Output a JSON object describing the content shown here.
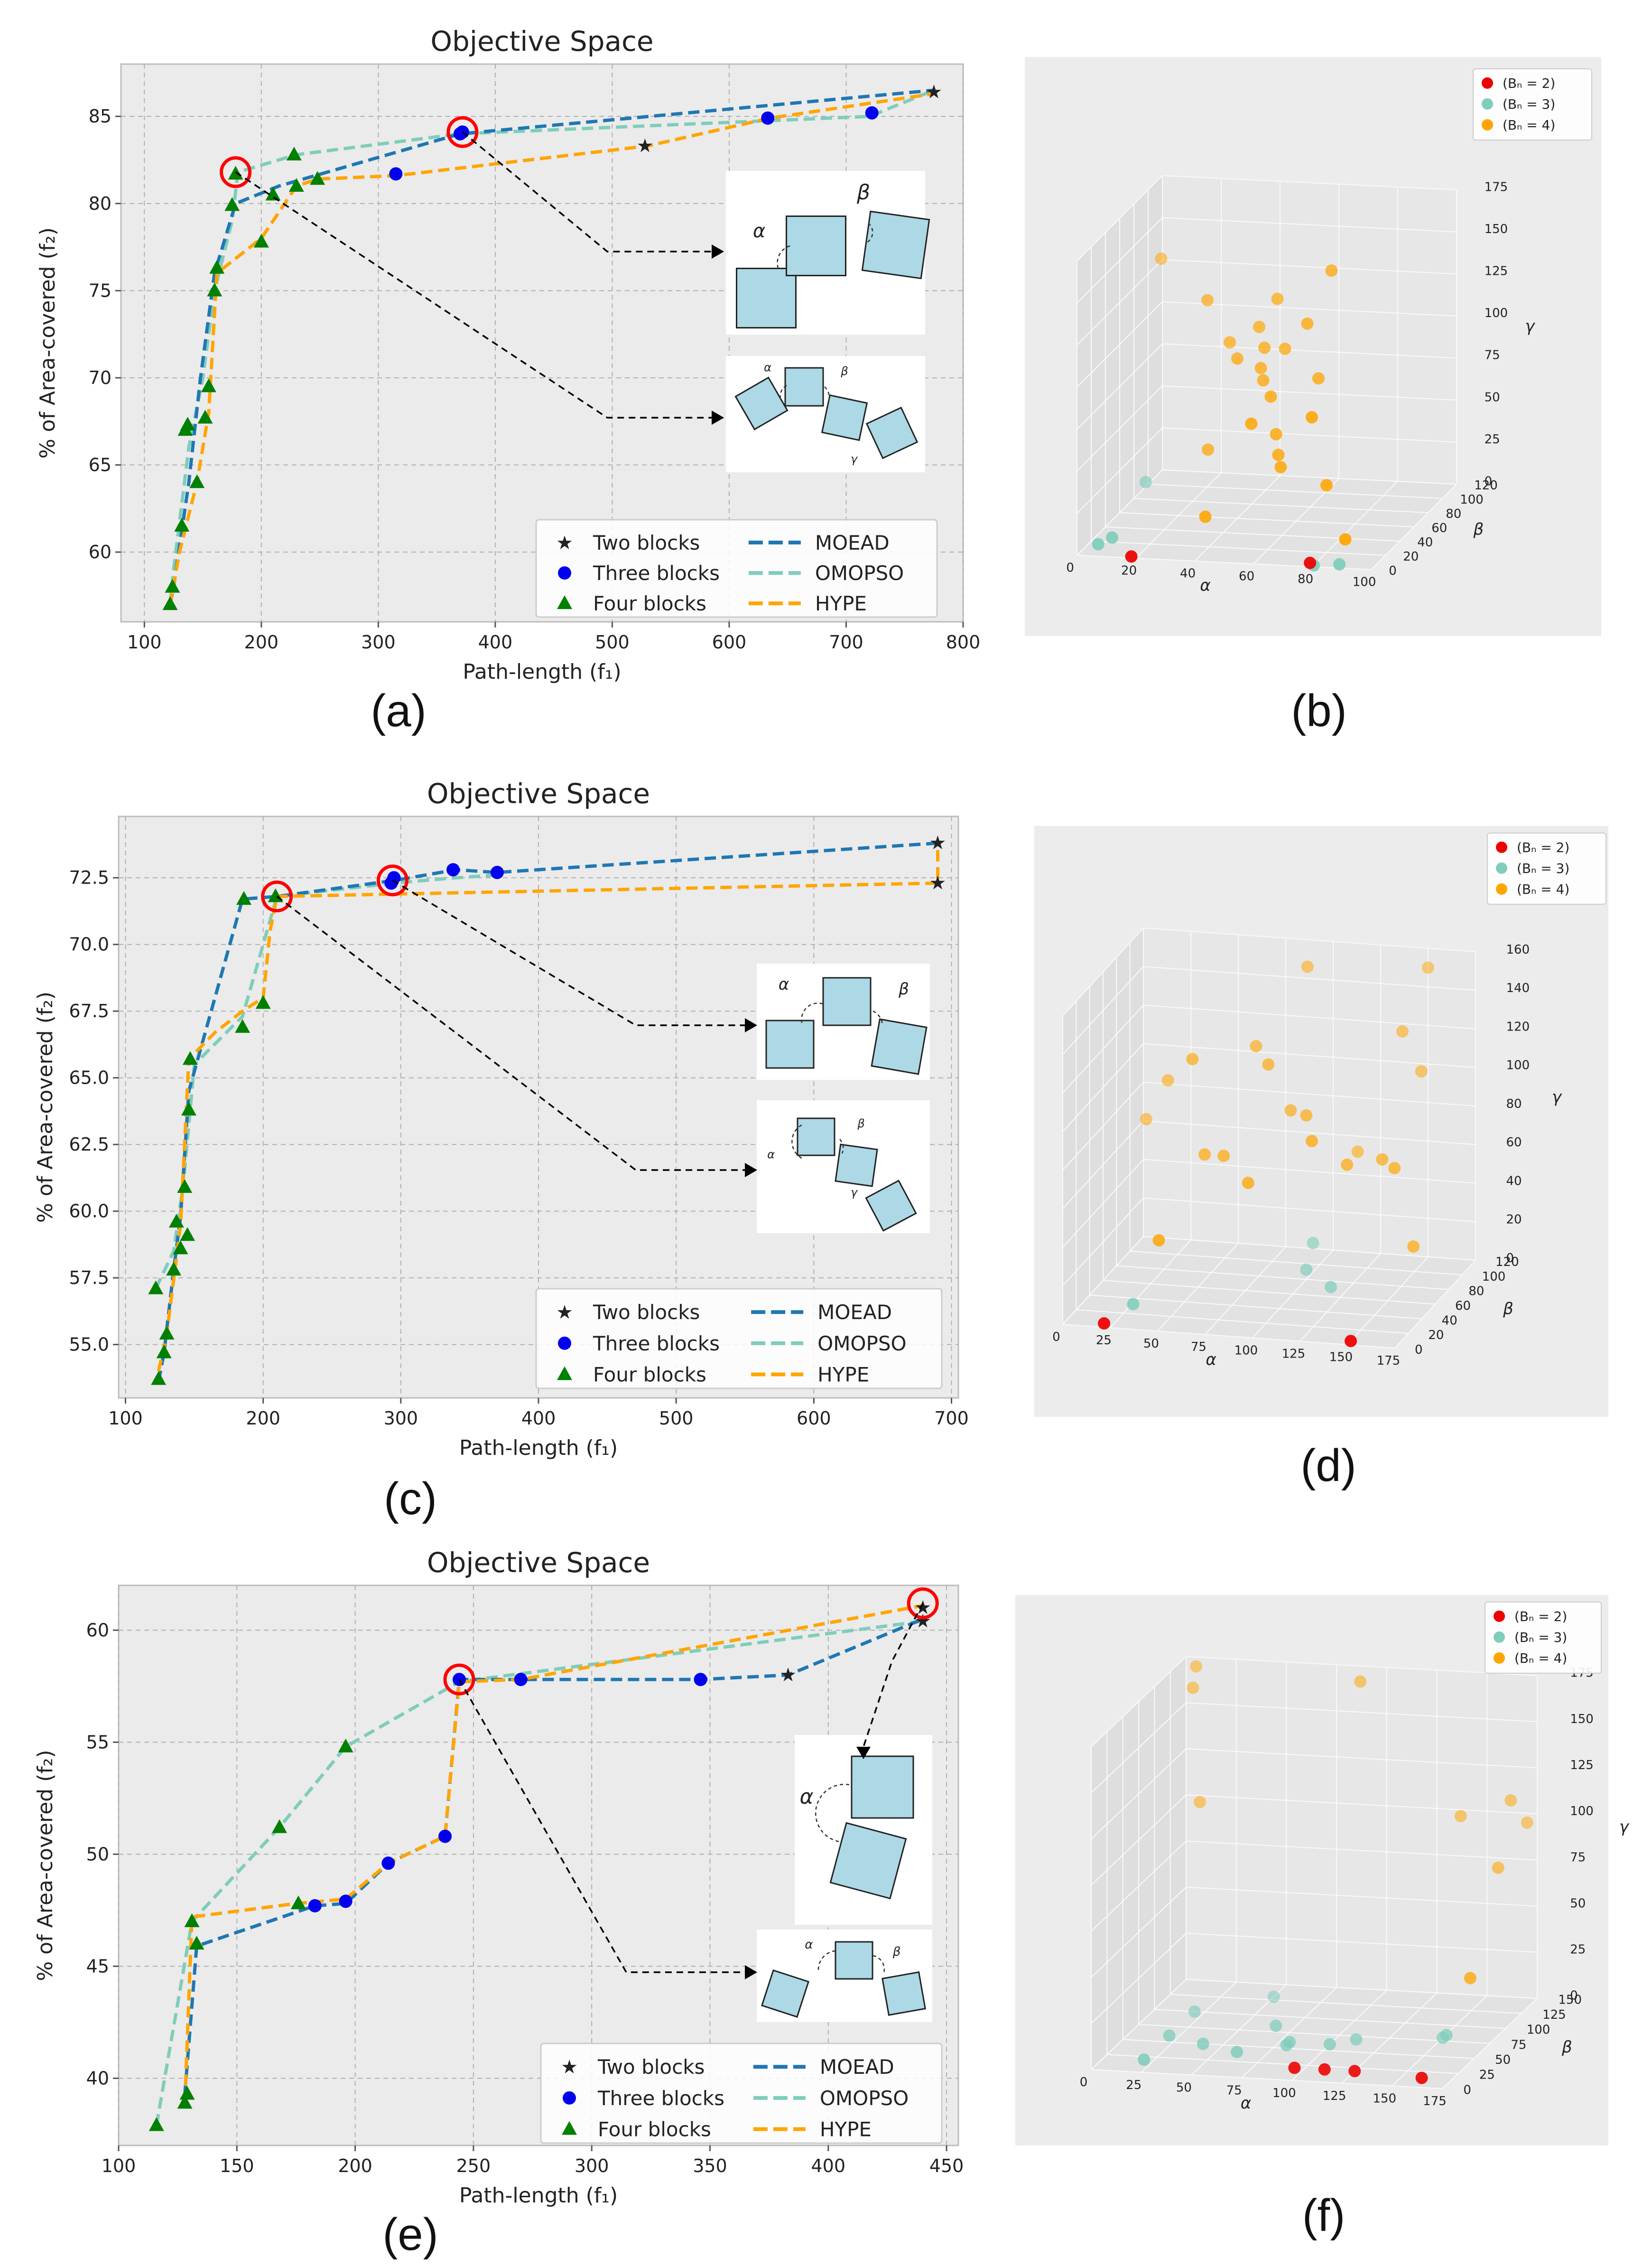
{
  "figure": {
    "panel_labels": [
      "(a)",
      "(b)",
      "(c)",
      "(d)",
      "(e)",
      "(f)"
    ]
  },
  "colors": {
    "moead": "#1f77b4",
    "omopso": "#7fcdbb",
    "hype": "#ffa500",
    "two": "#000000",
    "three": "#0000ee",
    "four": "#008000",
    "highlight": "#ff0000",
    "bn2": "#ee0000",
    "bn3": "#7fcdbb",
    "bn4": "#ffa500",
    "block": "#add8e6"
  },
  "chart_data": [
    {
      "id": "a",
      "type": "line",
      "title": "Objective Space",
      "xlabel": "Path-length (f₁)",
      "ylabel": "% of Area-covered (f₂)",
      "xlim": [
        80,
        800
      ],
      "ylim": [
        56,
        88
      ],
      "xticks": [
        100,
        200,
        300,
        400,
        500,
        600,
        700,
        800
      ],
      "yticks": [
        60,
        65,
        70,
        75,
        80,
        85
      ],
      "legend": [
        "Two blocks",
        "Three blocks",
        "Four blocks",
        "MOEAD",
        "OMOPSO",
        "HYPE"
      ],
      "series": [
        {
          "name": "MOEAD",
          "x": [
            122,
            125,
            138,
            148,
            160,
            178,
            215,
            370,
            775
          ],
          "y": [
            57,
            58,
            64,
            70,
            76,
            80,
            81,
            84,
            86.5
          ]
        },
        {
          "name": "OMOPSO",
          "x": [
            122,
            125,
            138,
            150,
            160,
            175,
            180,
            230,
            370,
            720,
            775
          ],
          "y": [
            57,
            59,
            66,
            70,
            75,
            79,
            81.8,
            82.8,
            84,
            85,
            86.5
          ]
        },
        {
          "name": "HYPE",
          "x": [
            122,
            130,
            145,
            155,
            162,
            200,
            230,
            248,
            315,
            530,
            635,
            775
          ],
          "y": [
            57,
            60,
            64,
            68,
            76,
            78,
            81,
            81.4,
            81.6,
            83.3,
            84.9,
            86.3
          ]
        }
      ],
      "two_blocks": {
        "x": [
          528,
          775
        ],
        "y": [
          83.3,
          86.4
        ]
      },
      "three_blocks": {
        "x": [
          315,
          370,
          372,
          633,
          722
        ],
        "y": [
          81.7,
          84.0,
          84.1,
          84.9,
          85.2
        ]
      },
      "four_blocks": {
        "x": [
          122,
          124,
          132,
          135,
          137,
          145,
          152,
          155,
          160,
          162,
          175,
          178,
          200,
          210,
          228,
          230,
          248
        ],
        "y": [
          57,
          58,
          61.5,
          67,
          67.3,
          64,
          67.7,
          69.5,
          75,
          76.3,
          79.9,
          81.7,
          77.8,
          80.5,
          82.8,
          81.0,
          81.4
        ]
      },
      "highlights": [
        {
          "x": 178,
          "y": 81.8
        },
        {
          "x": 372,
          "y": 84.1
        }
      ],
      "insets": [
        {
          "labels": [
            "α",
            "β"
          ]
        },
        {
          "labels": [
            "α",
            "β",
            "γ"
          ]
        }
      ]
    },
    {
      "id": "c",
      "type": "line",
      "title": "Objective Space",
      "xlabel": "Path-length (f₁)",
      "ylabel": "% of Area-covered (f₂)",
      "xlim": [
        95,
        705
      ],
      "ylim": [
        53,
        74.8
      ],
      "xticks": [
        100,
        200,
        300,
        400,
        500,
        600,
        700
      ],
      "yticks": [
        55.0,
        57.5,
        60.0,
        62.5,
        65.0,
        67.5,
        70.0,
        72.5
      ],
      "legend": [
        "Two blocks",
        "Three blocks",
        "Four blocks",
        "MOEAD",
        "OMOPSO",
        "HYPE"
      ],
      "series": [
        {
          "name": "MOEAD",
          "x": [
            124,
            128,
            135,
            140,
            146,
            185,
            210,
            295,
            340,
            370,
            690
          ],
          "y": [
            53.6,
            54.7,
            57.8,
            59.8,
            64.5,
            71.7,
            71.8,
            72.4,
            72.8,
            72.7,
            73.8
          ]
        },
        {
          "name": "OMOPSO",
          "x": [
            122,
            135,
            142,
            150,
            185,
            210,
            295,
            340,
            370
          ],
          "y": [
            57.1,
            58.5,
            61.0,
            65.5,
            67.3,
            71.8,
            72.3,
            72.5,
            72.6
          ]
        },
        {
          "name": "HYPE",
          "x": [
            124,
            130,
            140,
            146,
            165,
            185,
            200,
            205,
            210,
            690,
            690
          ],
          "y": [
            54.0,
            55.4,
            59.5,
            65.7,
            66.7,
            67.5,
            68.0,
            70.5,
            71.8,
            72.3,
            73.8
          ]
        }
      ],
      "two_blocks": {
        "x": [
          690,
          690
        ],
        "y": [
          72.3,
          73.8
        ]
      },
      "three_blocks": {
        "x": [
          293,
          295,
          338,
          370
        ],
        "y": [
          72.3,
          72.5,
          72.8,
          72.7
        ]
      },
      "four_blocks": {
        "x": [
          122,
          124,
          128,
          130,
          135,
          137,
          140,
          143,
          145,
          146,
          147,
          185,
          186,
          200,
          209
        ],
        "y": [
          57.1,
          53.7,
          54.7,
          55.4,
          57.8,
          59.6,
          58.6,
          60.9,
          59.1,
          63.8,
          65.7,
          66.9,
          71.7,
          67.8,
          71.8
        ]
      },
      "highlights": [
        {
          "x": 210,
          "y": 71.8
        },
        {
          "x": 294,
          "y": 72.4
        }
      ],
      "insets": [
        {
          "labels": [
            "α",
            "β"
          ]
        },
        {
          "labels": [
            "α",
            "β",
            "γ"
          ]
        }
      ]
    },
    {
      "id": "e",
      "type": "line",
      "title": "Objective Space",
      "xlabel": "Path-length (f₁)",
      "ylabel": "% of Area-covered (f₂)",
      "xlim": [
        100,
        455
      ],
      "ylim": [
        37,
        62
      ],
      "xticks": [
        100,
        150,
        200,
        250,
        300,
        350,
        400,
        450
      ],
      "yticks": [
        40,
        45,
        50,
        55,
        60
      ],
      "legend": [
        "Two blocks",
        "Three blocks",
        "Four blocks",
        "MOEAD",
        "OMOPSO",
        "HYPE"
      ],
      "series": [
        {
          "name": "MOEAD",
          "x": [
            128,
            133,
            183,
            196,
            214,
            238,
            244,
            270,
            346,
            383,
            440
          ],
          "y": [
            39.3,
            45.9,
            47.7,
            47.8,
            49.6,
            50.8,
            57.8,
            57.8,
            57.8,
            58.0,
            60.5
          ]
        },
        {
          "name": "OMOPSO",
          "x": [
            116,
            131,
            168,
            196,
            244,
            440
          ],
          "y": [
            37.9,
            47.0,
            51.2,
            54.8,
            57.7,
            60.4
          ]
        },
        {
          "name": "HYPE",
          "x": [
            128,
            131,
            175,
            196,
            214,
            238,
            244,
            270,
            440
          ],
          "y": [
            38.9,
            47.2,
            47.8,
            48.0,
            49.6,
            50.8,
            57.7,
            57.8,
            61.1
          ]
        }
      ],
      "two_blocks": {
        "x": [
          383,
          440,
          440
        ],
        "y": [
          58.0,
          60.4,
          61.0
        ]
      },
      "three_blocks": {
        "x": [
          183,
          196,
          214,
          238,
          244,
          270,
          346
        ],
        "y": [
          47.7,
          47.9,
          49.6,
          50.8,
          57.8,
          57.8,
          57.8
        ]
      },
      "four_blocks": {
        "x": [
          116,
          128,
          129,
          131,
          133,
          168,
          176,
          196
        ],
        "y": [
          37.9,
          38.9,
          39.3,
          47.0,
          46.0,
          51.2,
          47.8,
          54.8
        ]
      },
      "highlights": [
        {
          "x": 244,
          "y": 57.8
        },
        {
          "x": 440,
          "y": 61.2
        }
      ],
      "insets": [
        {
          "labels": [
            "α"
          ]
        },
        {
          "labels": [
            "α",
            "β"
          ]
        }
      ]
    },
    {
      "id": "b",
      "type": "scatter",
      "xlabel": "α",
      "ylabel": "β",
      "zlabel": "γ",
      "xticks": [
        0,
        20,
        40,
        60,
        80,
        100
      ],
      "yticks": [
        0,
        20,
        40,
        60,
        80,
        100,
        120
      ],
      "zticks": [
        0,
        25,
        50,
        75,
        100,
        125,
        150,
        175
      ],
      "xlim": [
        0,
        100
      ],
      "ylim": [
        0,
        120
      ],
      "zlim": [
        0,
        175
      ],
      "legend": [
        "(Bₙ = 2)",
        "(Bₙ = 3)",
        "(Bₙ = 4)"
      ],
      "points": {
        "Bn2": [
          [
            18,
            2,
            0
          ],
          [
            78,
            5,
            0
          ]
        ],
        "Bn3": [
          [
            6,
            5,
            5
          ],
          [
            10,
            8,
            8
          ],
          [
            4,
            80,
            10
          ],
          [
            80,
            2,
            0
          ],
          [
            88,
            5,
            0
          ]
        ],
        "Bn4": [
          [
            2,
            110,
            130
          ],
          [
            25,
            80,
            120
          ],
          [
            35,
            70,
            100
          ],
          [
            40,
            60,
            95
          ],
          [
            45,
            70,
            110
          ],
          [
            48,
            60,
            90
          ],
          [
            50,
            55,
            85
          ],
          [
            52,
            30,
            70
          ],
          [
            55,
            45,
            80
          ],
          [
            58,
            40,
            60
          ],
          [
            60,
            35,
            50
          ],
          [
            62,
            30,
            45
          ],
          [
            65,
            55,
            120
          ],
          [
            70,
            50,
            90
          ],
          [
            72,
            60,
            150
          ],
          [
            75,
            20,
            80
          ],
          [
            80,
            20,
            40
          ],
          [
            90,
            5,
            15
          ],
          [
            30,
            60,
            40
          ],
          [
            40,
            15,
            20
          ],
          [
            48,
            65,
            100
          ],
          [
            55,
            65,
            100
          ],
          [
            50,
            75,
            125
          ]
        ]
      }
    },
    {
      "id": "d",
      "type": "scatter",
      "xlabel": "α",
      "ylabel": "β",
      "zlabel": "γ",
      "xticks": [
        0,
        25,
        50,
        75,
        100,
        125,
        150,
        175
      ],
      "yticks": [
        0,
        20,
        40,
        60,
        80,
        100,
        120
      ],
      "zticks": [
        0,
        20,
        40,
        60,
        80,
        100,
        120,
        140,
        160
      ],
      "xlim": [
        0,
        175
      ],
      "ylim": [
        0,
        120
      ],
      "zlim": [
        0,
        160
      ],
      "legend": [
        "(Bₙ = 2)",
        "(Bₙ = 3)",
        "(Bₙ = 4)"
      ],
      "points": {
        "Bn2": [
          [
            20,
            5,
            0
          ],
          [
            150,
            5,
            0
          ]
        ],
        "Bn3": [
          [
            30,
            20,
            5
          ],
          [
            100,
            80,
            5
          ],
          [
            100,
            90,
            15
          ],
          [
            120,
            60,
            5
          ]
        ],
        "Bn4": [
          [
            5,
            110,
            65
          ],
          [
            20,
            100,
            90
          ],
          [
            40,
            80,
            110
          ],
          [
            50,
            70,
            65
          ],
          [
            60,
            70,
            65
          ],
          [
            40,
            30,
            35
          ],
          [
            70,
            90,
            115
          ],
          [
            80,
            80,
            110
          ],
          [
            80,
            50,
            60
          ],
          [
            90,
            85,
            85
          ],
          [
            100,
            80,
            85
          ],
          [
            110,
            60,
            80
          ],
          [
            125,
            70,
            65
          ],
          [
            140,
            80,
            65
          ],
          [
            150,
            70,
            65
          ],
          [
            160,
            70,
            25
          ],
          [
            140,
            110,
            120
          ],
          [
            150,
            120,
            150
          ],
          [
            90,
            110,
            150
          ],
          [
            150,
            110,
            100
          ],
          [
            120,
            100,
            60
          ]
        ]
      }
    },
    {
      "id": "f",
      "type": "scatter",
      "xlabel": "α",
      "ylabel": "β",
      "zlabel": "γ",
      "xticks": [
        0,
        25,
        50,
        75,
        100,
        125,
        150,
        175
      ],
      "yticks": [
        0,
        25,
        50,
        75,
        100,
        125,
        150
      ],
      "zticks": [
        0,
        25,
        50,
        75,
        100,
        125,
        150,
        175
      ],
      "xlim": [
        0,
        175
      ],
      "ylim": [
        0,
        150
      ],
      "zlim": [
        0,
        175
      ],
      "legend": [
        "(Bₙ = 2)",
        "(Bₙ = 3)",
        "(Bₙ = 4)"
      ],
      "points": {
        "Bn2": [
          [
            95,
            20,
            0
          ],
          [
            110,
            20,
            0
          ],
          [
            125,
            20,
            0
          ],
          [
            160,
            15,
            0
          ]
        ],
        "Bn3": [
          [
            20,
            20,
            0
          ],
          [
            20,
            60,
            0
          ],
          [
            40,
            50,
            0
          ],
          [
            60,
            40,
            0
          ],
          [
            70,
            70,
            5
          ],
          [
            80,
            60,
            0
          ],
          [
            80,
            55,
            0
          ],
          [
            100,
            60,
            0
          ],
          [
            110,
            70,
            0
          ],
          [
            150,
            80,
            0
          ],
          [
            155,
            70,
            5
          ],
          [
            50,
            130,
            0
          ],
          [
            20,
            100,
            0
          ]
        ],
        "Bn4": [
          [
            5,
            150,
            170
          ],
          [
            5,
            145,
            160
          ],
          [
            10,
            140,
            100
          ],
          [
            90,
            140,
            170
          ],
          [
            140,
            140,
            100
          ],
          [
            165,
            140,
            110
          ],
          [
            170,
            150,
            95
          ],
          [
            165,
            120,
            80
          ],
          [
            170,
            60,
            40
          ]
        ]
      }
    }
  ]
}
